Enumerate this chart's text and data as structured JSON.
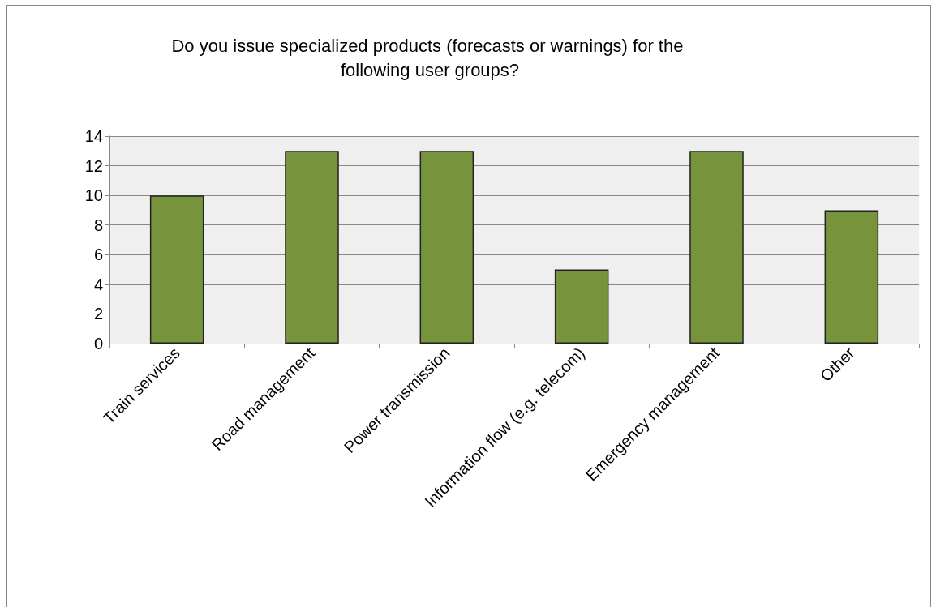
{
  "chart_data": {
    "type": "bar",
    "title": "Do you issue specialized products (forecasts or warnings) for the following user groups?",
    "categories": [
      "Train services",
      "Road management",
      "Power transmission",
      "Information flow (e.g. telecom)",
      "Emergency management",
      "Other"
    ],
    "values": [
      10,
      13,
      13,
      5,
      13,
      9
    ],
    "color": "#77933c",
    "ylim": [
      0,
      14
    ],
    "yticks": [
      0,
      2,
      4,
      6,
      8,
      10,
      12,
      14
    ],
    "grid": "y"
  }
}
